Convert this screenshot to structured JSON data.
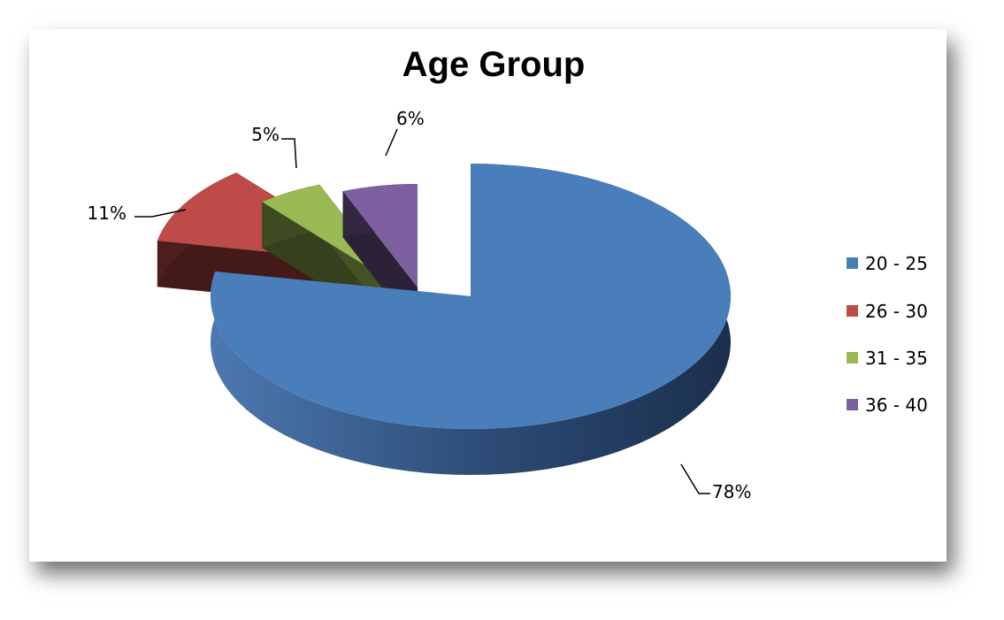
{
  "chart_data": {
    "type": "pie",
    "style": "3d-exploded",
    "title": "Age Group",
    "categories": [
      "20 - 25",
      "26 - 30",
      "31 - 35",
      "36 - 40"
    ],
    "values": [
      78,
      11,
      5,
      6
    ],
    "data_labels": [
      "78%",
      "11%",
      "5%",
      "6%"
    ],
    "colors": [
      "#4a7ebb",
      "#be4b48",
      "#98b954",
      "#7d60a0"
    ],
    "legend_position": "right"
  }
}
